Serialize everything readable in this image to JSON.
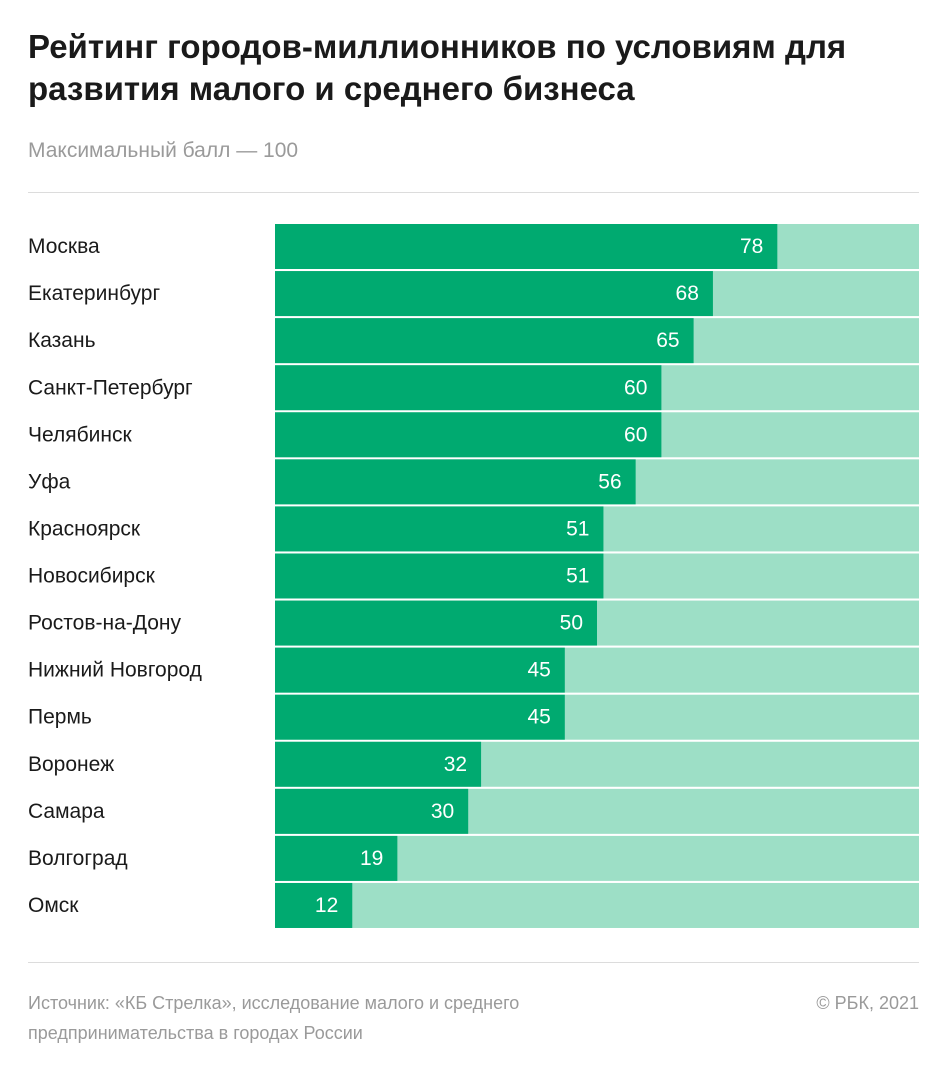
{
  "chart_data": {
    "type": "hbar",
    "title": "Рейтинг городов-миллионников по условиям для развития малого и среднего бизнеса",
    "subtitle": "Максимальный балл — 100",
    "categories": [
      "Москва",
      "Екатеринбург",
      "Казань",
      "Санкт-Петербург",
      "Челябинск",
      "Уфа",
      "Красноярск",
      "Новосибирск",
      "Ростов-на-Дону",
      "Нижний Новгород",
      "Пермь",
      "Воронеж",
      "Самара",
      "Волгоград",
      "Омск"
    ],
    "values": [
      78,
      68,
      65,
      60,
      60,
      56,
      51,
      51,
      50,
      45,
      45,
      32,
      30,
      19,
      12
    ],
    "color": "#00aa70",
    "track_color": "#9ddfc6",
    "xlim": [
      0,
      100
    ],
    "source": "Источник: «КБ Стрелка», исследование малого и среднего предпринимательства в городах России",
    "copyright": "© РБК, 2021"
  }
}
